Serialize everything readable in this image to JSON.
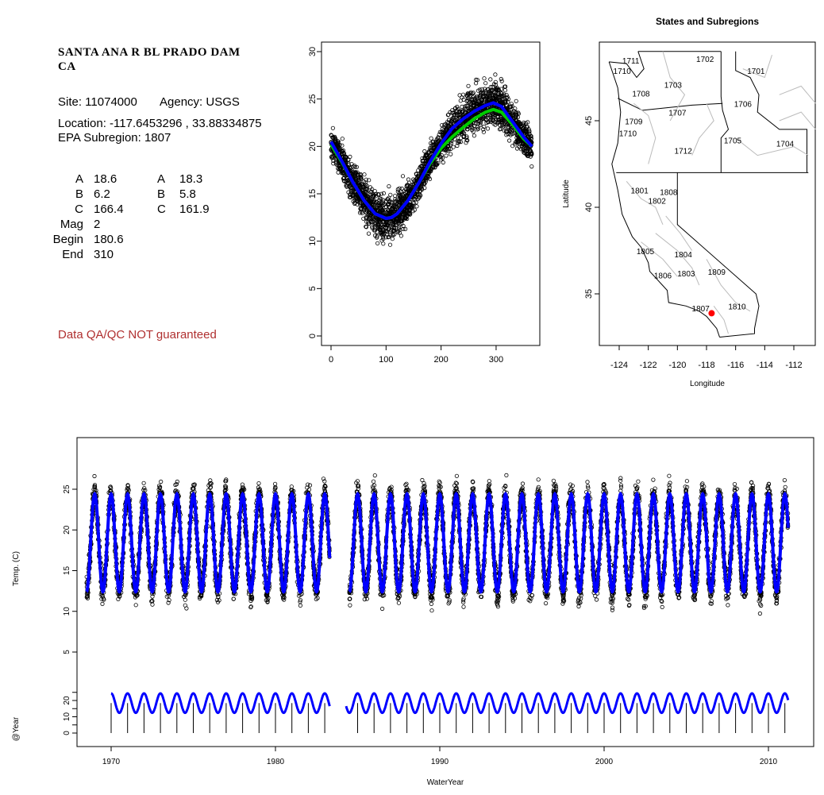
{
  "site_panel": {
    "name_line1": "SANTA ANA R BL PRADO DAM",
    "name_line2": "CA",
    "site": "Site: 11074000",
    "agency": "Agency: USGS",
    "location": "Location: -117.6453296 , 33.88334875",
    "epa": "EPA Subregion: 1807",
    "params": [
      {
        "label": "A",
        "v1": "18.6",
        "label2": "A",
        "v2": "18.3"
      },
      {
        "label": "B",
        "v1": "6.2",
        "label2": "B",
        "v2": "5.8"
      },
      {
        "label": "C",
        "v1": "166.4",
        "label2": "C",
        "v2": "161.9"
      },
      {
        "label": "Mag",
        "v1": "2"
      },
      {
        "label": "Begin",
        "v1": "180.6"
      },
      {
        "label": "End",
        "v1": "310"
      }
    ],
    "qa_note": "Data QA/QC NOT guaranteed",
    "qa_color": "#b03030"
  },
  "colors": {
    "points": "#000000",
    "fit_blue": "#0000ff",
    "fit_green": "#00cc00",
    "site_marker": "#ff0000",
    "map_lines": "#bbbbbb"
  },
  "chart_data": [
    {
      "type": "scatter",
      "id": "day-of-year",
      "title": "",
      "xlabel": "",
      "ylabel": "",
      "xlim": [
        0,
        365
      ],
      "ylim": [
        0,
        30
      ],
      "xticks": [
        0,
        100,
        200,
        300
      ],
      "yticks": [
        0,
        5,
        10,
        15,
        20,
        25,
        30
      ],
      "series": [
        {
          "kind": "points",
          "x": [
            0,
            10,
            20,
            30,
            40,
            50,
            60,
            70,
            80,
            90,
            100,
            110,
            120,
            130,
            140,
            150,
            160,
            170,
            180,
            190,
            200,
            210,
            220,
            230,
            240,
            250,
            260,
            270,
            280,
            290,
            300,
            310,
            320,
            330,
            340,
            350,
            360
          ],
          "y": [
            20.5,
            19.5,
            18.4,
            17.3,
            16.2,
            15.2,
            14.3,
            13.5,
            12.9,
            12.5,
            12.4,
            12.5,
            12.9,
            13.5,
            14.3,
            15.2,
            16.2,
            17.3,
            18.4,
            19.4,
            20.3,
            21.0,
            21.6,
            22.2,
            22.8,
            23.3,
            23.7,
            24.1,
            24.3,
            24.4,
            24.3,
            23.9,
            23.2,
            22.4,
            21.5,
            20.6,
            19.8
          ]
        },
        {
          "kind": "line",
          "color": "blue",
          "x": [
            0,
            20,
            40,
            60,
            80,
            100,
            110,
            120,
            140,
            160,
            180,
            200,
            220,
            240,
            260,
            280,
            295,
            310,
            330,
            350,
            365
          ],
          "y": [
            20.5,
            18.4,
            16.2,
            14.3,
            12.9,
            12.4,
            12.5,
            12.9,
            14.3,
            16.2,
            18.4,
            20.3,
            21.9,
            22.9,
            23.7,
            24.3,
            24.6,
            24.2,
            22.6,
            21.0,
            20.0
          ]
        },
        {
          "kind": "line",
          "color": "green",
          "x": [
            0,
            20,
            40,
            60,
            80,
            100,
            110,
            120,
            140,
            160,
            180,
            200,
            220,
            240,
            260,
            280,
            295,
            310,
            330,
            350,
            365
          ],
          "y": [
            20.2,
            18.3,
            16.2,
            14.3,
            12.9,
            12.4,
            12.5,
            12.9,
            14.3,
            16.2,
            18.2,
            19.8,
            21.0,
            22.0,
            22.9,
            23.6,
            23.9,
            23.6,
            22.3,
            20.8,
            20.0
          ]
        }
      ]
    },
    {
      "type": "map",
      "id": "states-subregions",
      "title": "States and Subregions",
      "xlabel": "Longitude",
      "ylabel": "Latitude",
      "xlim": [
        -125.5,
        -110.5
      ],
      "ylim": [
        32.3,
        49.4
      ],
      "xticks": [
        -124,
        -122,
        -120,
        -118,
        -116,
        -114,
        -112
      ],
      "yticks": [
        35,
        40,
        45
      ],
      "region_labels": [
        {
          "text": "1702",
          "lon": -118.1,
          "lat": 48.4
        },
        {
          "text": "1701",
          "lon": -114.6,
          "lat": 47.7
        },
        {
          "text": "1711",
          "lon": -123.2,
          "lat": 48.3
        },
        {
          "text": "1710",
          "lon": -123.8,
          "lat": 47.7
        },
        {
          "text": "1703",
          "lon": -120.3,
          "lat": 46.9
        },
        {
          "text": "1708",
          "lon": -122.5,
          "lat": 46.4
        },
        {
          "text": "1706",
          "lon": -115.5,
          "lat": 45.8
        },
        {
          "text": "1707",
          "lon": -120.0,
          "lat": 45.3
        },
        {
          "text": "1709",
          "lon": -123.0,
          "lat": 44.8
        },
        {
          "text": "1710",
          "lon": -123.4,
          "lat": 44.1
        },
        {
          "text": "1705",
          "lon": -116.2,
          "lat": 43.7
        },
        {
          "text": "1704",
          "lon": -112.6,
          "lat": 43.5
        },
        {
          "text": "1712",
          "lon": -119.6,
          "lat": 43.1
        },
        {
          "text": "1801",
          "lon": -122.6,
          "lat": 40.8
        },
        {
          "text": "1808",
          "lon": -120.6,
          "lat": 40.7
        },
        {
          "text": "1802",
          "lon": -121.4,
          "lat": 40.2
        },
        {
          "text": "1805",
          "lon": -122.2,
          "lat": 37.3
        },
        {
          "text": "1804",
          "lon": -119.6,
          "lat": 37.1
        },
        {
          "text": "1806",
          "lon": -121.0,
          "lat": 35.9
        },
        {
          "text": "1803",
          "lon": -119.4,
          "lat": 36.0
        },
        {
          "text": "1809",
          "lon": -117.3,
          "lat": 36.1
        },
        {
          "text": "1807",
          "lon": -118.4,
          "lat": 34.0
        },
        {
          "text": "1810",
          "lon": -115.9,
          "lat": 34.1
        }
      ],
      "site": {
        "lon": -117.65,
        "lat": 33.88
      }
    },
    {
      "type": "line",
      "id": "time-series",
      "xlabel": "WaterYear",
      "ylabel": "Temp. (C)",
      "xlim": [
        1966.2,
        2012.6
      ],
      "xticks": [
        1970,
        1980,
        1990,
        2000,
        2010
      ],
      "ylim_temp": [
        3,
        29.5
      ],
      "yticks_temp": [
        5,
        10,
        15,
        20,
        25
      ],
      "temp_segments": [
        [
          1968.5,
          1983.3
        ],
        [
          1984.5,
          2011.2
        ]
      ],
      "temp_mean": 18.4,
      "temp_amp": 6.0,
      "ylabel2": "@Year",
      "ylim_year": [
        -3,
        27
      ],
      "yticks_year": [
        0,
        10,
        20
      ],
      "yticks_year_minor": [
        0,
        5,
        10,
        15,
        20,
        25
      ],
      "year_segments": [
        [
          1970,
          1983.3
        ],
        [
          1984.3,
          2011.2
        ]
      ],
      "year_mean": 18.4,
      "year_amp": 6.0,
      "year_markers": [
        1970,
        1971,
        1972,
        1973,
        1974,
        1975,
        1976,
        1977,
        1978,
        1979,
        1980,
        1981,
        1982,
        1983,
        1984,
        1985,
        1986,
        1987,
        1988,
        1989,
        1990,
        1991,
        1992,
        1993,
        1994,
        1995,
        1996,
        1997,
        1998,
        1999,
        2000,
        2001,
        2002,
        2003,
        2004,
        2005,
        2006,
        2007,
        2008,
        2009,
        2010,
        2011
      ]
    }
  ]
}
